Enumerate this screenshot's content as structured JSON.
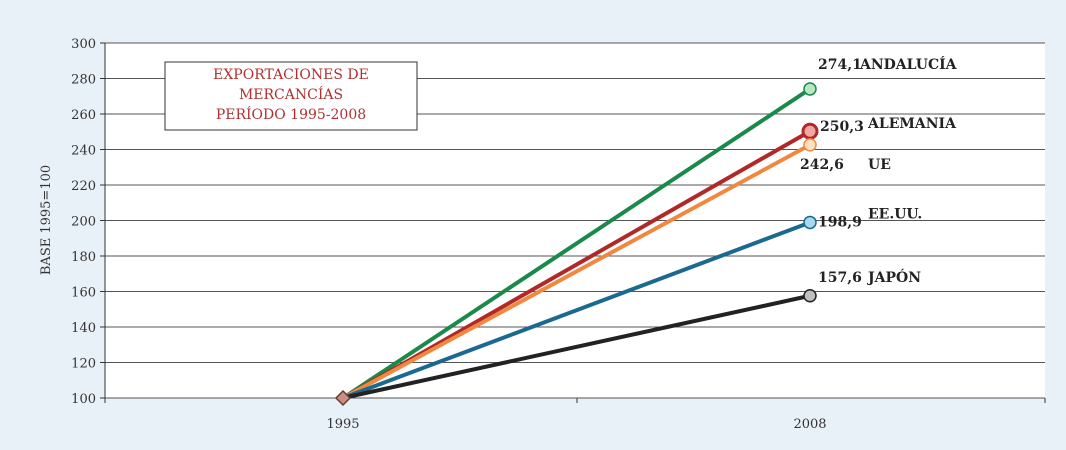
{
  "chart_data": {
    "type": "line",
    "title_lines": [
      "EXPORTACIONES DE",
      "MERCANCÍAS",
      "PERÍODO 1995-2008"
    ],
    "ylabel": "BASE 1995=100",
    "xlabel": "",
    "categories": [
      "1995",
      "2008"
    ],
    "ylim": [
      100,
      300
    ],
    "yticks": [
      100,
      120,
      140,
      160,
      180,
      200,
      220,
      240,
      260,
      280,
      300
    ],
    "grid": "horizontal",
    "series": [
      {
        "name": "ANDALUCÍA",
        "values": [
          100,
          274.1
        ],
        "label": "274,1",
        "color": "#1a8a4a",
        "marker_fill": "#b8e8c0"
      },
      {
        "name": "ALEMANIA",
        "values": [
          100,
          250.3
        ],
        "label": "250,3",
        "color": "#b02828",
        "marker_fill": "#f0a8a0"
      },
      {
        "name": "UE",
        "values": [
          100,
          242.6
        ],
        "label": "242,6",
        "color": "#f08840",
        "marker_fill": "#ffe0c0"
      },
      {
        "name": "EE.UU.",
        "values": [
          100,
          198.9
        ],
        "label": "198,9",
        "color": "#1a6a90",
        "marker_fill": "#a8d8f0"
      },
      {
        "name": "JAPÓN",
        "values": [
          100,
          157.6
        ],
        "label": "157,6",
        "color": "#222222",
        "marker_fill": "#c0c0c0"
      }
    ],
    "start_marker_color": "#c89080"
  }
}
